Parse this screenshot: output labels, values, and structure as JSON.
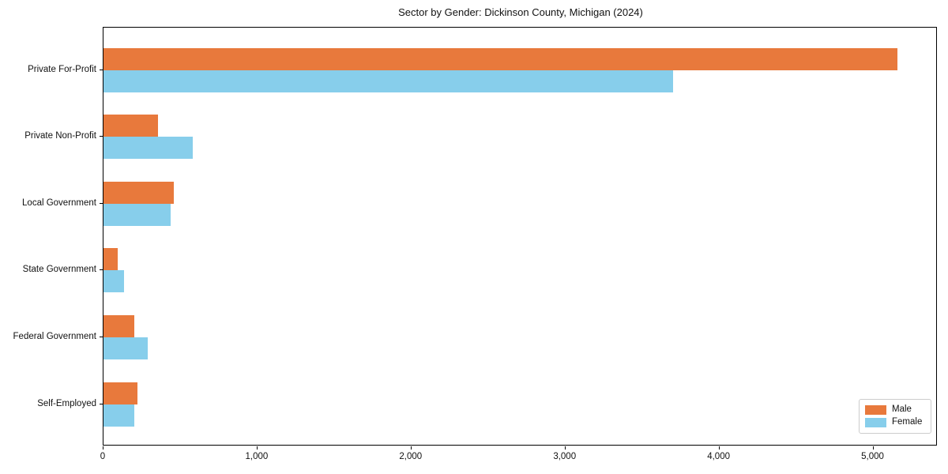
{
  "title": "Sector by Gender: Dickinson County, Michigan (2024)",
  "colors": {
    "male": "#e8793c",
    "female": "#87ceeb",
    "axis": "#000000",
    "legend_border": "#cccccc"
  },
  "chart_data": {
    "type": "bar",
    "orientation": "horizontal",
    "title": "Sector by Gender: Dickinson County, Michigan (2024)",
    "categories": [
      "Private For-Profit",
      "Private Non-Profit",
      "Local Government",
      "State Government",
      "Federal Government",
      "Self-Employed"
    ],
    "series": [
      {
        "name": "Male",
        "color": "#e8793c",
        "values": [
          5156,
          355,
          458,
          94,
          202,
          221
        ]
      },
      {
        "name": "Female",
        "color": "#87ceeb",
        "values": [
          3699,
          581,
          438,
          133,
          287,
          198
        ]
      }
    ],
    "xlabel": "",
    "ylabel": "",
    "xlim": [
      0,
      5418
    ],
    "x_ticks": [
      0,
      1000,
      2000,
      3000,
      4000,
      5000
    ],
    "x_tick_labels": [
      "0",
      "1,000",
      "2,000",
      "3,000",
      "4,000",
      "5,000"
    ],
    "grid": false,
    "legend_position": "lower right",
    "legend_labels": [
      "Male",
      "Female"
    ]
  }
}
